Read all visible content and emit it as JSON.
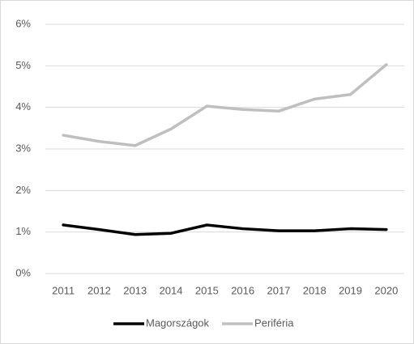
{
  "chart_data": {
    "type": "line",
    "categories": [
      "2011",
      "2012",
      "2013",
      "2014",
      "2015",
      "2016",
      "2017",
      "2018",
      "2019",
      "2020"
    ],
    "series": [
      {
        "name": "Magországok",
        "color": "#000000",
        "values": [
          1.17,
          1.06,
          0.94,
          0.97,
          1.17,
          1.08,
          1.03,
          1.03,
          1.08,
          1.06
        ]
      },
      {
        "name": "Periféria",
        "color": "#bfbfbf",
        "values": [
          3.33,
          3.18,
          3.08,
          3.48,
          4.03,
          3.95,
          3.91,
          4.2,
          4.31,
          5.03
        ]
      }
    ],
    "ylim": [
      0,
      6
    ],
    "yticks": [
      {
        "value": 0,
        "label": "0%"
      },
      {
        "value": 1,
        "label": "1%"
      },
      {
        "value": 2,
        "label": "2%"
      },
      {
        "value": 3,
        "label": "3%"
      },
      {
        "value": 4,
        "label": "4%"
      },
      {
        "value": 5,
        "label": "5%"
      },
      {
        "value": 6,
        "label": "6%"
      }
    ],
    "grid": true,
    "legend": "bottom"
  }
}
